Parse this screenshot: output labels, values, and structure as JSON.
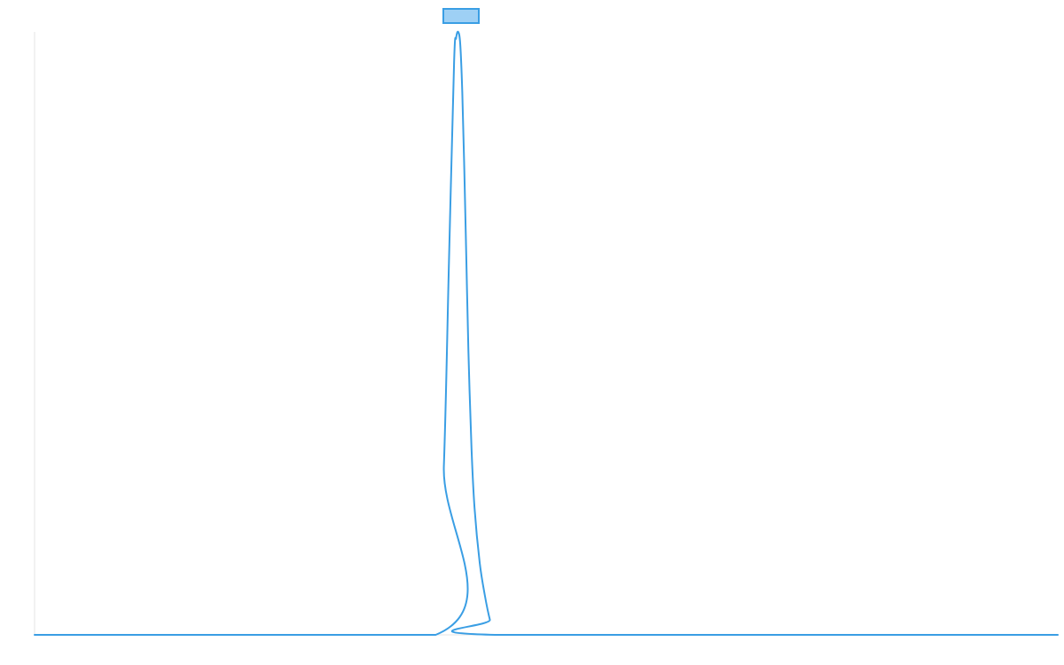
{
  "chart_data": {
    "type": "line",
    "title": "",
    "xlabel": "",
    "ylabel": "",
    "xlim": [
      0,
      100
    ],
    "ylim": [
      0,
      1
    ],
    "grid": false,
    "legend": "top-center",
    "series": [
      {
        "name": "",
        "color": "#3a9ee4",
        "fill": "#9ed0f5",
        "x": [
          0,
          39.2,
          40.0,
          40.5,
          41.0,
          41.2,
          41.4,
          41.6,
          41.8,
          42.0,
          42.2,
          42.4,
          42.7,
          43.0,
          43.5,
          44.0,
          44.5,
          45.0,
          100
        ],
        "y": [
          0,
          0,
          0.28,
          0.62,
          0.95,
          0.99,
          1.0,
          0.98,
          0.9,
          0.77,
          0.62,
          0.47,
          0.31,
          0.21,
          0.12,
          0.066,
          0.025,
          0,
          0
        ]
      }
    ]
  }
}
